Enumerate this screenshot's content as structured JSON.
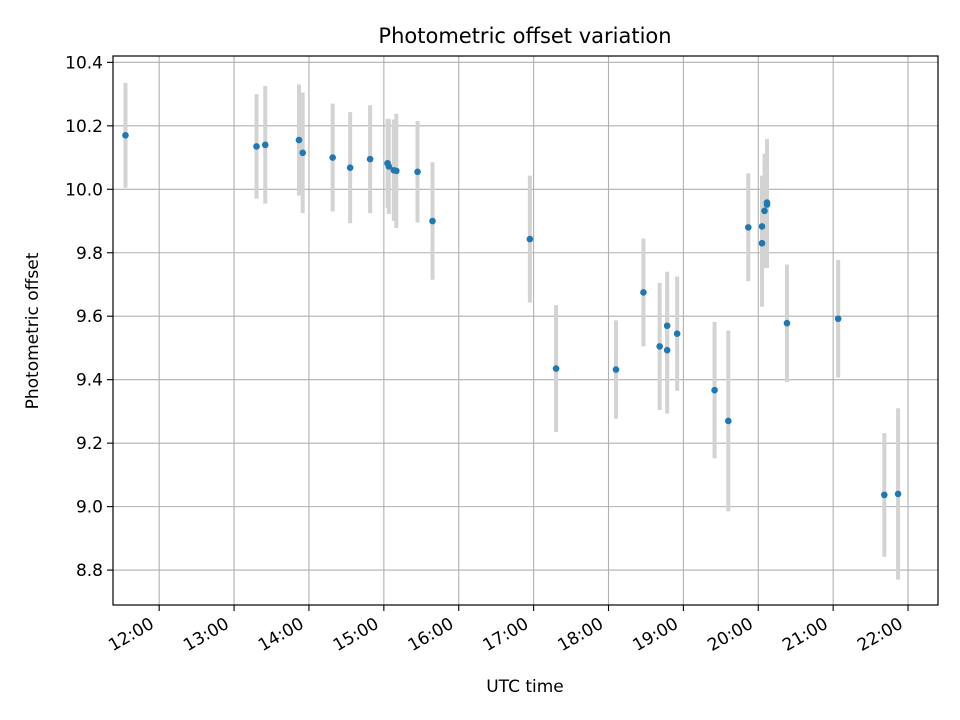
{
  "chart_data": {
    "type": "scatter",
    "title": "Photometric offset variation",
    "xlabel": "UTC time",
    "ylabel": "Photometric offset",
    "x_ticks": [
      "12:00",
      "13:00",
      "14:00",
      "15:00",
      "16:00",
      "17:00",
      "18:00",
      "19:00",
      "20:00",
      "21:00",
      "22:00"
    ],
    "y_ticks": [
      "8.8",
      "9.0",
      "9.2",
      "9.4",
      "9.6",
      "9.8",
      "10.0",
      "10.2",
      "10.4"
    ],
    "xlim": [
      "11:23",
      "22:24"
    ],
    "ylim": [
      8.69,
      10.42
    ],
    "grid": true,
    "colors": {
      "point": "#1f77b4",
      "errorbar": "#d3d3d3",
      "grid": "#b0b0b0"
    },
    "series": [
      {
        "points": [
          {
            "x": "11:33",
            "y": 10.17,
            "err": 0.165
          },
          {
            "x": "13:18",
            "y": 10.135,
            "err": 0.165
          },
          {
            "x": "13:25",
            "y": 10.14,
            "err": 0.185
          },
          {
            "x": "13:52",
            "y": 10.155,
            "err": 0.175
          },
          {
            "x": "13:55",
            "y": 10.115,
            "err": 0.19
          },
          {
            "x": "14:19",
            "y": 10.1,
            "err": 0.17
          },
          {
            "x": "14:33",
            "y": 10.068,
            "err": 0.175
          },
          {
            "x": "14:49",
            "y": 10.095,
            "err": 0.17
          },
          {
            "x": "15:03",
            "y": 10.082,
            "err": 0.14
          },
          {
            "x": "15:04",
            "y": 10.072,
            "err": 0.15
          },
          {
            "x": "15:08",
            "y": 10.06,
            "err": 0.16
          },
          {
            "x": "15:10",
            "y": 10.058,
            "err": 0.18
          },
          {
            "x": "15:27",
            "y": 10.055,
            "err": 0.16
          },
          {
            "x": "15:39",
            "y": 9.9,
            "err": 0.185
          },
          {
            "x": "16:57",
            "y": 9.843,
            "err": 0.2
          },
          {
            "x": "17:18",
            "y": 9.435,
            "err": 0.2
          },
          {
            "x": "18:06",
            "y": 9.432,
            "err": 0.155
          },
          {
            "x": "18:28",
            "y": 9.675,
            "err": 0.17
          },
          {
            "x": "18:41",
            "y": 9.505,
            "err": 0.2
          },
          {
            "x": "18:47",
            "y": 9.57,
            "err": 0.17
          },
          {
            "x": "18:47",
            "y": 9.493,
            "err": 0.2
          },
          {
            "x": "18:55",
            "y": 9.545,
            "err": 0.18
          },
          {
            "x": "19:25",
            "y": 9.367,
            "err": 0.215
          },
          {
            "x": "19:36",
            "y": 9.27,
            "err": 0.285
          },
          {
            "x": "19:52",
            "y": 9.88,
            "err": 0.17
          },
          {
            "x": "20:03",
            "y": 9.883,
            "err": 0.16
          },
          {
            "x": "20:03",
            "y": 9.83,
            "err": 0.2
          },
          {
            "x": "20:05",
            "y": 9.932,
            "err": 0.18
          },
          {
            "x": "20:07",
            "y": 9.958,
            "err": 0.2
          },
          {
            "x": "20:07",
            "y": 9.952,
            "err": 0.2
          },
          {
            "x": "20:23",
            "y": 9.578,
            "err": 0.185
          },
          {
            "x": "21:04",
            "y": 9.592,
            "err": 0.185
          },
          {
            "x": "21:41",
            "y": 9.037,
            "err": 0.195
          },
          {
            "x": "21:52",
            "y": 9.04,
            "err": 0.27
          }
        ]
      }
    ]
  }
}
